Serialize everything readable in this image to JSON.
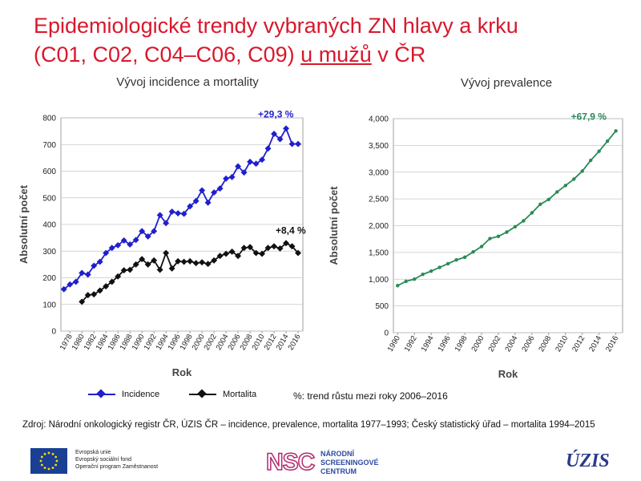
{
  "title": {
    "line1": "Epidemiologické trendy vybraných ZN hlavy a krku",
    "line2_prefix": "(C01, C02, C04–C06, C09) ",
    "line2_underlined": "u mužů",
    "line2_suffix": " v ČR"
  },
  "chart_data": [
    {
      "type": "line",
      "title": "Vývoj incidence a mortality",
      "xlabel": "Rok",
      "ylabel": "Absolutní počet",
      "ylim": [
        0,
        800
      ],
      "yticks": [
        "0",
        "100",
        "200",
        "300",
        "400",
        "500",
        "600",
        "700",
        "800"
      ],
      "xticks": [
        "1978",
        "1980",
        "1982",
        "1984",
        "1986",
        "1988",
        "1990",
        "1992",
        "1994",
        "1996",
        "1998",
        "2000",
        "2002",
        "2004",
        "2006",
        "2008",
        "2010",
        "2012",
        "2014",
        "2016"
      ],
      "grid": true,
      "legend": "bottom",
      "series": [
        {
          "name": "Incidence",
          "color": "#1f1fcf",
          "x": [
            1977,
            1978,
            1979,
            1980,
            1981,
            1982,
            1983,
            1984,
            1985,
            1986,
            1987,
            1988,
            1989,
            1990,
            1991,
            1992,
            1993,
            1994,
            1995,
            1996,
            1997,
            1998,
            1999,
            2000,
            2001,
            2002,
            2003,
            2004,
            2005,
            2006,
            2007,
            2008,
            2009,
            2010,
            2011,
            2012,
            2013,
            2014,
            2015,
            2016
          ],
          "values": [
            157,
            175,
            185,
            218,
            212,
            245,
            260,
            293,
            312,
            322,
            340,
            325,
            342,
            375,
            355,
            375,
            435,
            405,
            448,
            442,
            440,
            468,
            488,
            528,
            482,
            520,
            535,
            572,
            578,
            618,
            595,
            635,
            628,
            643,
            685,
            740,
            720,
            760,
            702,
            702
          ]
        },
        {
          "name": "Mortalita",
          "color": "#111111",
          "x": [
            1980,
            1981,
            1982,
            1983,
            1984,
            1985,
            1986,
            1987,
            1988,
            1989,
            1990,
            1991,
            1992,
            1993,
            1994,
            1995,
            1996,
            1997,
            1998,
            1999,
            2000,
            2001,
            2002,
            2003,
            2004,
            2005,
            2006,
            2007,
            2008,
            2009,
            2010,
            2011,
            2012,
            2013,
            2014,
            2015,
            2016
          ],
          "values": [
            110,
            135,
            138,
            152,
            168,
            185,
            205,
            228,
            230,
            250,
            270,
            250,
            265,
            230,
            293,
            235,
            262,
            260,
            262,
            255,
            258,
            252,
            265,
            282,
            290,
            298,
            282,
            312,
            315,
            293,
            290,
            312,
            318,
            310,
            330,
            318,
            293
          ]
        }
      ],
      "annotations": [
        {
          "text": "+29,3 %",
          "color": "#1f1fcf"
        },
        {
          "text": "+8,4 %",
          "color": "#111111"
        }
      ]
    },
    {
      "type": "line",
      "title": "Vývoj prevalence",
      "xlabel": "Rok",
      "ylabel": "Absolutní počet",
      "ylim": [
        0,
        4000
      ],
      "yticks": [
        "0",
        "500",
        "1,000",
        "1,500",
        "2,000",
        "2,500",
        "3,000",
        "3,500",
        "4,000"
      ],
      "xticks": [
        "1990",
        "1992",
        "1994",
        "1996",
        "1998",
        "2000",
        "2002",
        "2004",
        "2006",
        "2008",
        "2010",
        "2012",
        "2014",
        "2016"
      ],
      "grid": true,
      "series": [
        {
          "name": "Prevalence",
          "color": "#2a8a57",
          "x": [
            1990,
            1991,
            1992,
            1993,
            1994,
            1995,
            1996,
            1997,
            1998,
            1999,
            2000,
            2001,
            2002,
            2003,
            2004,
            2005,
            2006,
            2007,
            2008,
            2009,
            2010,
            2011,
            2012,
            2013,
            2014,
            2015,
            2016
          ],
          "values": [
            880,
            960,
            1000,
            1090,
            1150,
            1220,
            1290,
            1360,
            1410,
            1510,
            1610,
            1760,
            1800,
            1880,
            1980,
            2090,
            2240,
            2400,
            2490,
            2630,
            2750,
            2870,
            3020,
            3220,
            3390,
            3580,
            3770
          ]
        }
      ],
      "annotations": [
        {
          "text": "+67,9 %",
          "color": "#2a8a57"
        }
      ]
    }
  ],
  "legend": {
    "incidence": "Incidence",
    "mortalita": "Mortalita",
    "note": "%: trend růstu mezi roky 2006–2016"
  },
  "source": "Zdroj: Národní onkologický registr ČR, ÚZIS ČR – incidence, prevalence, mortalita 1977–1993; Český statistický úřad – mortalita 1994–2015",
  "footer": {
    "eu_lines": [
      "Evropská unie",
      "Evropský sociální fond",
      "Operační program Zaměstnanost"
    ],
    "nsc_letters": "NSC",
    "nsc_lines": [
      "NÁRODNÍ",
      "SCREENINGOVÉ",
      "CENTRUM"
    ],
    "uzis": "ÚZIS"
  }
}
